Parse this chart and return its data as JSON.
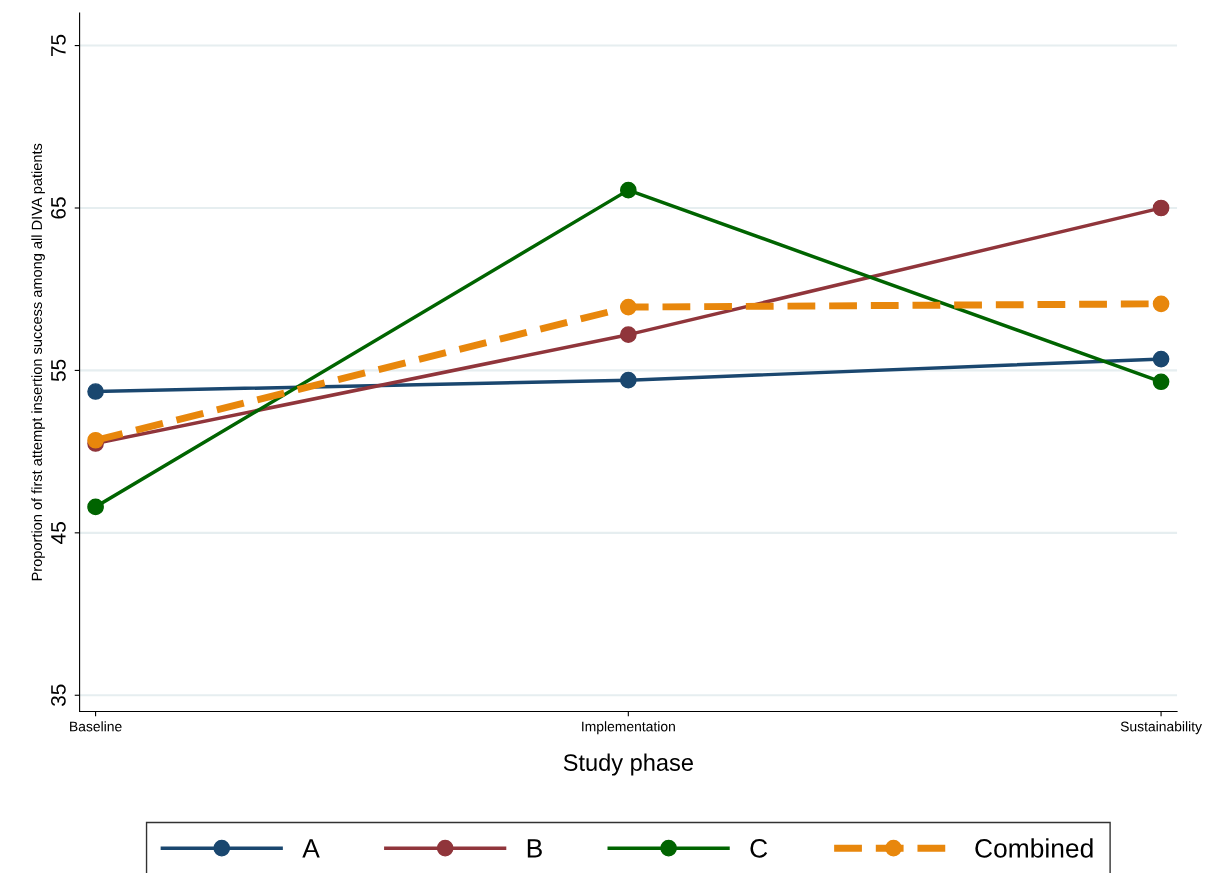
{
  "chart_data": {
    "type": "line",
    "xlabel": "Study phase",
    "ylabel": "Proportion of first attempt insertion success among all DIVA patients",
    "categories": [
      "Baseline",
      "Implementation",
      "Sustainability"
    ],
    "series": [
      {
        "name": "A",
        "color": "#1a476f",
        "values": [
          53.7,
          54.4,
          55.7
        ]
      },
      {
        "name": "B",
        "color": "#90353b",
        "values": [
          50.5,
          57.2,
          65.0
        ]
      },
      {
        "name": "C",
        "color": "#006400",
        "values": [
          46.6,
          66.1,
          54.3
        ]
      },
      {
        "name": "Combined",
        "color": "#e8870c",
        "values": [
          50.7,
          58.9,
          59.1
        ],
        "line_style": "dashed"
      }
    ],
    "ylim": [
      34,
      77
    ],
    "yticks": [
      35,
      45,
      55,
      65,
      75
    ],
    "grid": "y",
    "legend": "bottom",
    "marker": "circle",
    "line_style": "solid"
  }
}
